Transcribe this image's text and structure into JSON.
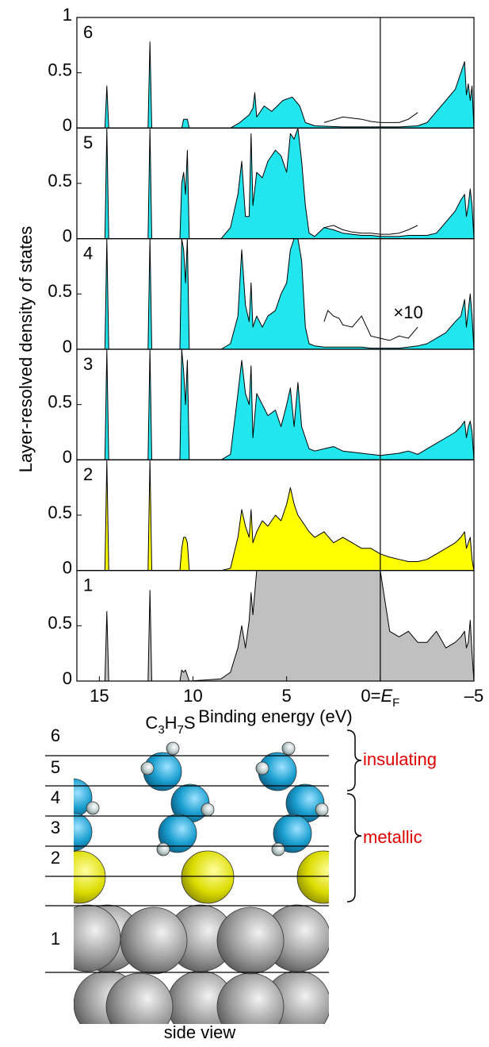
{
  "chart_data": [
    {
      "type": "area",
      "title": "6",
      "ylabel": "Layer-resolved density of states",
      "x": [
        16.2,
        14.7,
        14.6,
        14.5,
        12.4,
        12.3,
        12.2,
        10.6,
        10.5,
        10.3,
        10.2,
        8,
        7.5,
        7,
        6.8,
        6.7,
        6.6,
        6.2,
        5.8,
        5.2,
        4.7,
        4.3,
        4,
        3.5,
        2,
        0,
        -1,
        -2,
        -2.5,
        -3,
        -3.5,
        -4,
        -4.3,
        -4.5,
        -4.6,
        -4.7,
        -4.8,
        -4.9,
        -5
      ],
      "series": [
        {
          "color": "#22e6ee",
          "values": [
            0,
            0,
            0.38,
            0,
            0,
            0.78,
            0,
            0,
            0.08,
            0.08,
            0,
            0,
            0.05,
            0.12,
            0.18,
            0.32,
            0.1,
            0.2,
            0.15,
            0.25,
            0.28,
            0.2,
            0.05,
            0.02,
            0.01,
            0.01,
            0.01,
            0.02,
            0.05,
            0.15,
            0.25,
            0.35,
            0.5,
            0.6,
            0.3,
            0.4,
            0.25,
            0.38,
            0
          ]
        },
        {
          "type": "line",
          "color": "#000000",
          "x": [
            3,
            2,
            1,
            0.5,
            0,
            -0.5,
            -1,
            -1.5,
            -2
          ],
          "values": [
            0.05,
            0.1,
            0.08,
            0.06,
            0.05,
            0.05,
            0.05,
            0.08,
            0.14
          ]
        }
      ],
      "xlim": [
        16.2,
        -5
      ],
      "ylim": [
        0,
        1
      ],
      "yticks": [
        0,
        0.5,
        1
      ]
    },
    {
      "type": "area",
      "title": "5",
      "x": [
        16.2,
        14.7,
        14.6,
        14.5,
        12.4,
        12.3,
        12.2,
        10.7,
        10.6,
        10.5,
        10.4,
        10.3,
        10.2,
        8.5,
        8,
        7.6,
        7.4,
        7.2,
        7,
        6.9,
        6.8,
        6.6,
        6.3,
        6,
        5.6,
        5.3,
        5,
        4.8,
        4.6,
        4.4,
        4.2,
        4,
        3.8,
        3.5,
        3,
        2.5,
        2,
        1.5,
        1,
        0.5,
        0,
        -0.5,
        -1,
        -1.5,
        -2,
        -2.5,
        -3,
        -3.5,
        -4,
        -4.3,
        -4.5,
        -4.6,
        -4.7,
        -4.8,
        -4.9,
        -5
      ],
      "series": [
        {
          "color": "#22e6ee",
          "values": [
            0,
            0,
            1,
            0,
            0,
            1,
            0,
            0,
            0.5,
            0.6,
            0.4,
            0.8,
            0,
            0,
            0.1,
            0.4,
            0.7,
            0.2,
            0.2,
            0.95,
            0.3,
            0.6,
            0.55,
            0.7,
            0.8,
            0.75,
            0.6,
            0.95,
            0.9,
            1,
            0.7,
            0.3,
            0.05,
            0.02,
            0.1,
            0.08,
            0.05,
            0.04,
            0.03,
            0.03,
            0.02,
            0.02,
            0.02,
            0.03,
            0.03,
            0.03,
            0.05,
            0.15,
            0.25,
            0.35,
            0.4,
            0.2,
            0.3,
            0.45,
            0.3,
            0
          ]
        },
        {
          "type": "line",
          "color": "#000000",
          "x": [
            3,
            2.5,
            2,
            1.5,
            1,
            0.5,
            0,
            -0.5,
            -1,
            -1.5,
            -2
          ],
          "values": [
            0.1,
            0.12,
            0.08,
            0.06,
            0.05,
            0.05,
            0.04,
            0.04,
            0.05,
            0.08,
            0.12
          ]
        }
      ],
      "xlim": [
        16.2,
        -5
      ],
      "ylim": [
        0,
        1
      ],
      "yticks": [
        0,
        0.5
      ]
    },
    {
      "type": "area",
      "title": "4",
      "annotation": "×10",
      "x": [
        16.2,
        14.7,
        14.6,
        14.5,
        12.4,
        12.3,
        12.2,
        10.7,
        10.6,
        10.5,
        10.4,
        10.3,
        10.2,
        8.5,
        8,
        7.6,
        7.4,
        7.2,
        7,
        6.9,
        6.8,
        6.6,
        6.3,
        6,
        5.6,
        5.3,
        5,
        4.8,
        4.6,
        4.4,
        4.2,
        4,
        3.8,
        3.5,
        3,
        2.5,
        2,
        1.5,
        1,
        0.5,
        0,
        -0.5,
        -1,
        -1.5,
        -2,
        -2.5,
        -3,
        -3.5,
        -4,
        -4.3,
        -4.5,
        -4.6,
        -4.7,
        -4.8,
        -4.9,
        -5
      ],
      "series": [
        {
          "color": "#22e6ee",
          "values": [
            0,
            0,
            1,
            0,
            0,
            1,
            0,
            0,
            1,
            0.9,
            0.6,
            1,
            0,
            0,
            0.05,
            0.3,
            0.9,
            0.4,
            0.25,
            0.6,
            0.2,
            0.3,
            0.2,
            0.3,
            0.35,
            0.5,
            0.6,
            0.9,
            1,
            1,
            0.8,
            0.2,
            0.05,
            0.03,
            0.02,
            0.02,
            0.02,
            0.02,
            0.02,
            0.01,
            0.01,
            0.01,
            0.01,
            0.02,
            0.03,
            0.05,
            0.1,
            0.15,
            0.25,
            0.3,
            0.45,
            0.2,
            0.35,
            0.5,
            0.3,
            0
          ]
        },
        {
          "type": "line",
          "color": "#000000",
          "x": [
            3,
            2.8,
            2.5,
            2.2,
            2,
            1.5,
            1,
            0.5,
            0,
            -0.5,
            -1,
            -1.5,
            -2
          ],
          "values": [
            0.25,
            0.35,
            0.3,
            0.28,
            0.22,
            0.2,
            0.3,
            0.12,
            0.1,
            0.08,
            0.12,
            0.1,
            0.2
          ]
        }
      ],
      "xlim": [
        16.2,
        -5
      ],
      "ylim": [
        0,
        1
      ],
      "yticks": [
        0,
        0.5
      ]
    },
    {
      "type": "area",
      "title": "3",
      "x": [
        16.2,
        14.7,
        14.6,
        14.5,
        12.4,
        12.3,
        12.2,
        10.7,
        10.6,
        10.5,
        10.4,
        10.3,
        10.2,
        8.5,
        8,
        7.6,
        7.4,
        7.2,
        7,
        6.9,
        6.8,
        6.6,
        6.3,
        6,
        5.6,
        5.3,
        5,
        4.8,
        4.6,
        4.4,
        4.2,
        4,
        3.8,
        3.5,
        3,
        2.5,
        2,
        1.5,
        1,
        0.5,
        0,
        -0.5,
        -1,
        -1.5,
        -2,
        -2.5,
        -3,
        -3.5,
        -4,
        -4.3,
        -4.5,
        -4.6,
        -4.7,
        -4.8,
        -4.9,
        -5
      ],
      "series": [
        {
          "color": "#22e6ee",
          "values": [
            0,
            0,
            1,
            0,
            0,
            1,
            0,
            0,
            1,
            0.8,
            0.5,
            0.9,
            0,
            0,
            0.05,
            0.6,
            0.9,
            0.6,
            0.5,
            0.85,
            0.2,
            0.6,
            0.5,
            0.4,
            0.45,
            0.3,
            0.5,
            0.65,
            0.3,
            0.7,
            0.3,
            0.2,
            0.1,
            0.08,
            0.1,
            0.12,
            0.08,
            0.07,
            0.06,
            0.05,
            0.04,
            0.05,
            0.06,
            0.08,
            0.05,
            0.1,
            0.15,
            0.2,
            0.25,
            0.3,
            0.35,
            0.2,
            0.3,
            0.35,
            0.25,
            0
          ]
        }
      ],
      "xlim": [
        16.2,
        -5
      ],
      "ylim": [
        0,
        1
      ],
      "yticks": [
        0,
        0.5
      ]
    },
    {
      "type": "area",
      "title": "2",
      "x": [
        16.2,
        14.7,
        14.6,
        14.5,
        12.4,
        12.3,
        12.2,
        10.7,
        10.6,
        10.5,
        10.4,
        10.3,
        10.2,
        8.5,
        8,
        7.6,
        7.4,
        7.2,
        7,
        6.9,
        6.8,
        6.6,
        6.3,
        6,
        5.6,
        5.3,
        5,
        4.8,
        4.6,
        4.4,
        4.2,
        4,
        3.8,
        3.5,
        3,
        2.5,
        2,
        1.5,
        1,
        0.5,
        0,
        -0.5,
        -1,
        -1.5,
        -2,
        -2.5,
        -3,
        -3.5,
        -4,
        -4.3,
        -4.5,
        -4.6,
        -4.7,
        -4.8,
        -4.9,
        -5
      ],
      "series": [
        {
          "color": "#ffff00",
          "values": [
            0,
            0,
            1,
            0,
            0,
            1,
            0,
            0,
            0.2,
            0.3,
            0.3,
            0.25,
            0,
            0,
            0.02,
            0.3,
            0.55,
            0.4,
            0.3,
            0.55,
            0.25,
            0.35,
            0.45,
            0.4,
            0.5,
            0.45,
            0.6,
            0.75,
            0.6,
            0.5,
            0.45,
            0.4,
            0.35,
            0.3,
            0.35,
            0.25,
            0.3,
            0.25,
            0.2,
            0.2,
            0.15,
            0.12,
            0.1,
            0.08,
            0.08,
            0.1,
            0.15,
            0.2,
            0.25,
            0.3,
            0.35,
            0.2,
            0.25,
            0.3,
            0.1,
            0
          ]
        }
      ],
      "xlim": [
        16.2,
        -5
      ],
      "ylim": [
        0,
        1
      ],
      "yticks": [
        0,
        0.5
      ]
    },
    {
      "type": "area",
      "title": "1",
      "xlabel": "Binding energy (eV)",
      "x": [
        16.2,
        14.7,
        14.6,
        14.5,
        12.4,
        12.3,
        12.2,
        10.7,
        10.6,
        10.5,
        10.4,
        10.3,
        10.2,
        8.5,
        8,
        7.6,
        7.4,
        7.2,
        7,
        6.9,
        6.8,
        6.6,
        6.3,
        6,
        5.6,
        5.3,
        5,
        4.8,
        4.6,
        4.4,
        4.2,
        4,
        3.8,
        3.5,
        3,
        2.5,
        2,
        1.5,
        1,
        0.5,
        0,
        -0.5,
        -1,
        -1.5,
        -2,
        -2.5,
        -3,
        -3.5,
        -4,
        -4.3,
        -4.5,
        -4.6,
        -4.7,
        -4.8,
        -4.9,
        -5
      ],
      "series": [
        {
          "color": "#c0c0c0",
          "values": [
            0,
            0,
            0.63,
            0,
            0,
            0.82,
            0,
            0,
            0.1,
            0.08,
            0.1,
            0.05,
            0,
            0.02,
            0.08,
            0.3,
            0.5,
            0.3,
            0.55,
            0.8,
            0.6,
            1,
            1,
            1,
            1,
            1,
            1,
            1,
            1,
            1,
            1,
            1,
            1,
            1,
            1,
            1,
            1,
            1,
            1,
            1,
            1,
            0.45,
            0.4,
            0.45,
            0.35,
            0.35,
            0.45,
            0.3,
            0.35,
            0.4,
            0.45,
            0.3,
            0.35,
            0.55,
            0.25,
            0
          ]
        }
      ],
      "xlim": [
        16.2,
        -5
      ],
      "ylim": [
        0,
        1
      ],
      "yticks": [
        0,
        0.5
      ],
      "xticks": [
        15,
        10,
        5,
        {
          "value": 0,
          "label": "0=EF"
        },
        {
          "value": -5,
          "label": "–5"
        }
      ]
    }
  ],
  "diagram": {
    "layers": [
      "6",
      "5",
      "4",
      "3",
      "2",
      "1"
    ],
    "molecule": "C3H7S",
    "regions": [
      "insulating",
      "metallic"
    ],
    "caption": "side view"
  }
}
